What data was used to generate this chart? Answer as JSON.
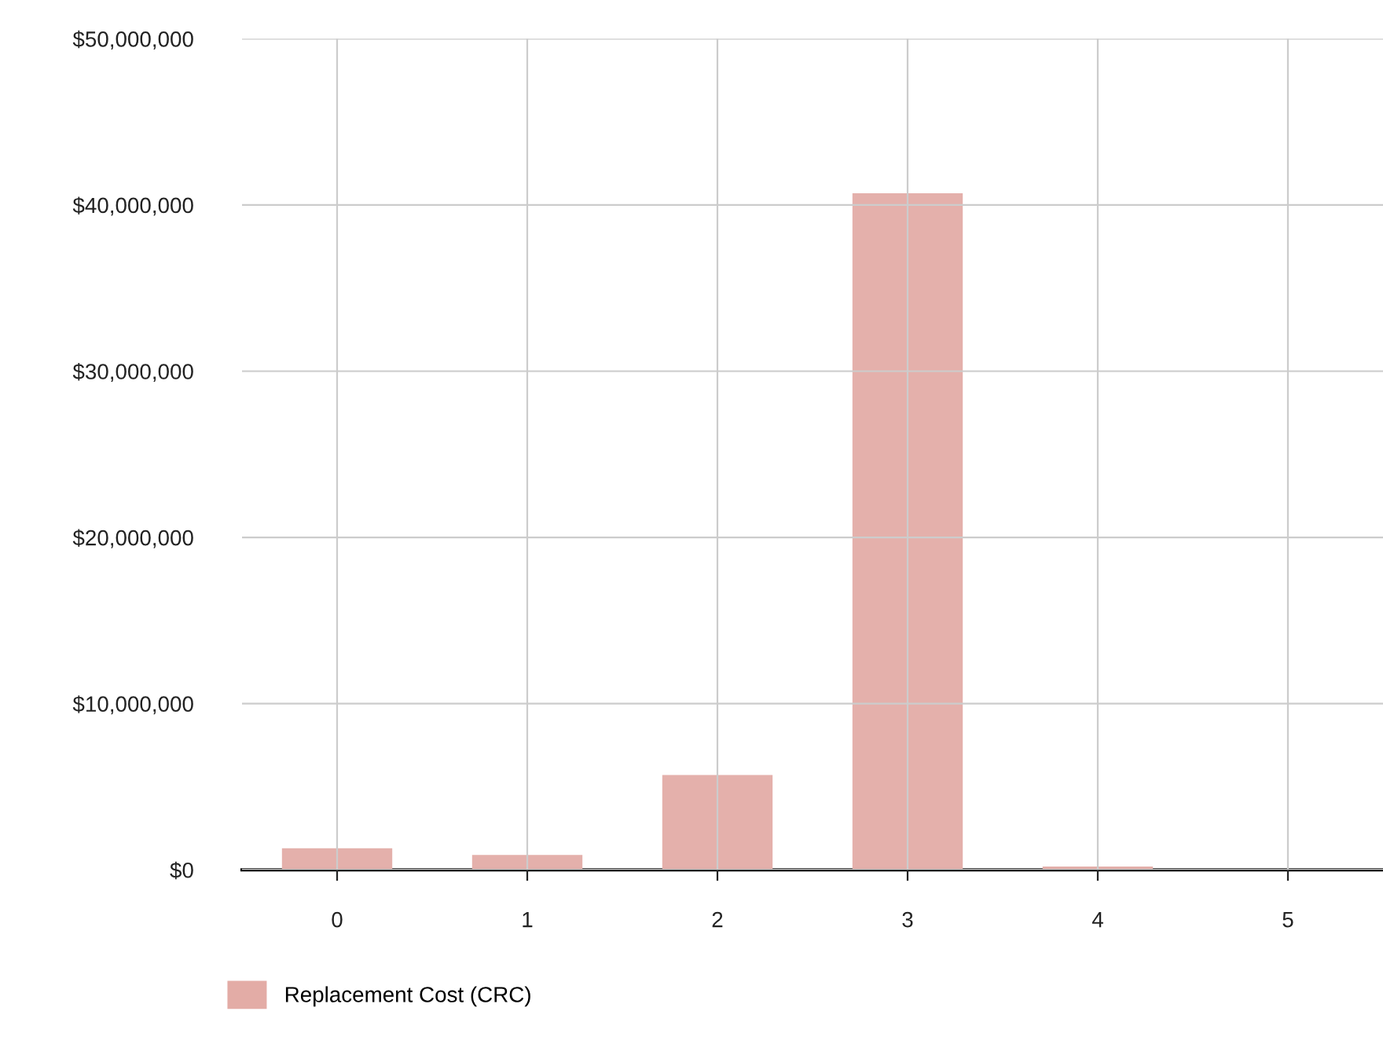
{
  "chart_data": {
    "type": "bar",
    "categories": [
      "0",
      "1",
      "2",
      "3",
      "4",
      "5"
    ],
    "series": [
      {
        "name": "Replacement Cost (CRC)",
        "color": "#e3aca6",
        "values": [
          1300000,
          900000,
          5700000,
          40700000,
          200000,
          0
        ]
      }
    ],
    "ylim": [
      0,
      50000000
    ],
    "yticks": [
      {
        "value": 0,
        "label": "$0"
      },
      {
        "value": 10000000,
        "label": "$10,000,000"
      },
      {
        "value": 20000000,
        "label": "$20,000,000"
      },
      {
        "value": 30000000,
        "label": "$30,000,000"
      },
      {
        "value": 40000000,
        "label": "$40,000,000"
      },
      {
        "value": 50000000,
        "label": "$50,000,000"
      }
    ],
    "grid": true,
    "legend": "bottom left"
  }
}
